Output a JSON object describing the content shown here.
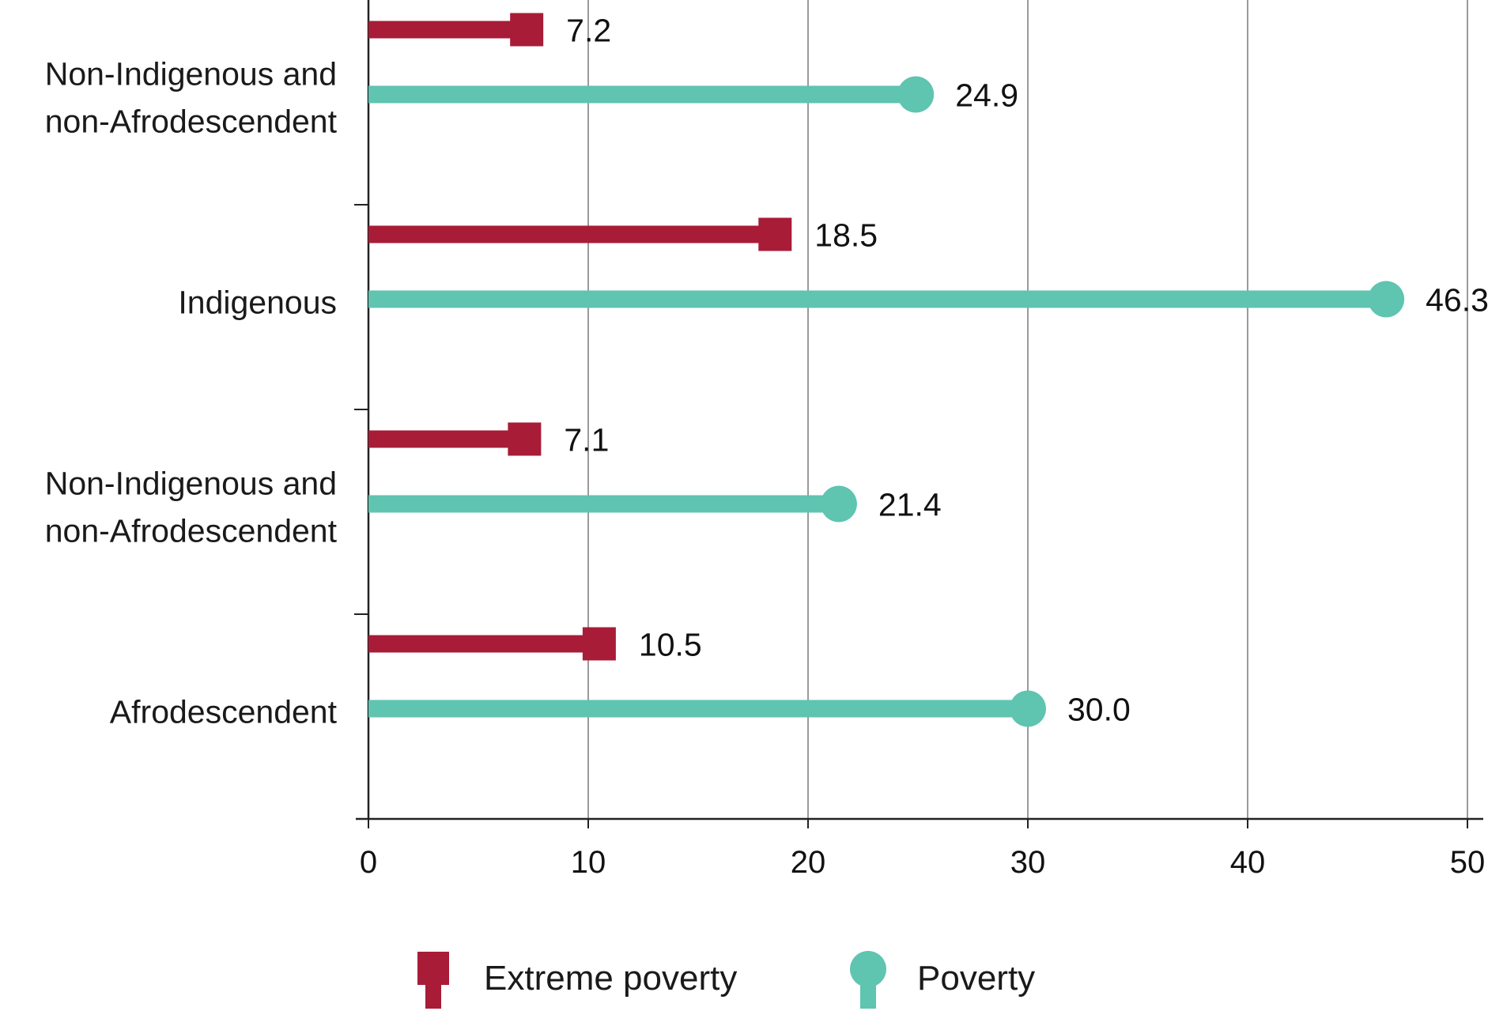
{
  "chart_data": {
    "type": "lollipop",
    "orientation": "horizontal",
    "categories": [
      [
        "Non-Indigenous and",
        "non-Afrodescendent"
      ],
      [
        "Indigenous"
      ],
      [
        "Non-Indigenous and",
        "non-Afrodescendent"
      ],
      [
        "Afrodescendent"
      ]
    ],
    "series": [
      {
        "name": "Extreme poverty",
        "marker": "square",
        "color": "#a81c38",
        "values": [
          7.2,
          18.5,
          7.1,
          10.5
        ],
        "labels": [
          "7.2",
          "18.5",
          "7.1",
          "10.5"
        ]
      },
      {
        "name": "Poverty",
        "marker": "circle",
        "color": "#5fc4b0",
        "values": [
          24.9,
          46.3,
          21.4,
          30.0
        ],
        "labels": [
          "24.9",
          "46.3",
          "21.4",
          "30.0"
        ]
      }
    ],
    "xlim": [
      0,
      50
    ],
    "xticks": [
      0,
      10,
      20,
      30,
      40,
      50
    ],
    "xtick_labels": [
      "0",
      "10",
      "20",
      "30",
      "40",
      "50"
    ],
    "grid": true,
    "legend_position": "bottom-center",
    "axis_color": "#222222",
    "grid_color": "#9a9a9a"
  }
}
